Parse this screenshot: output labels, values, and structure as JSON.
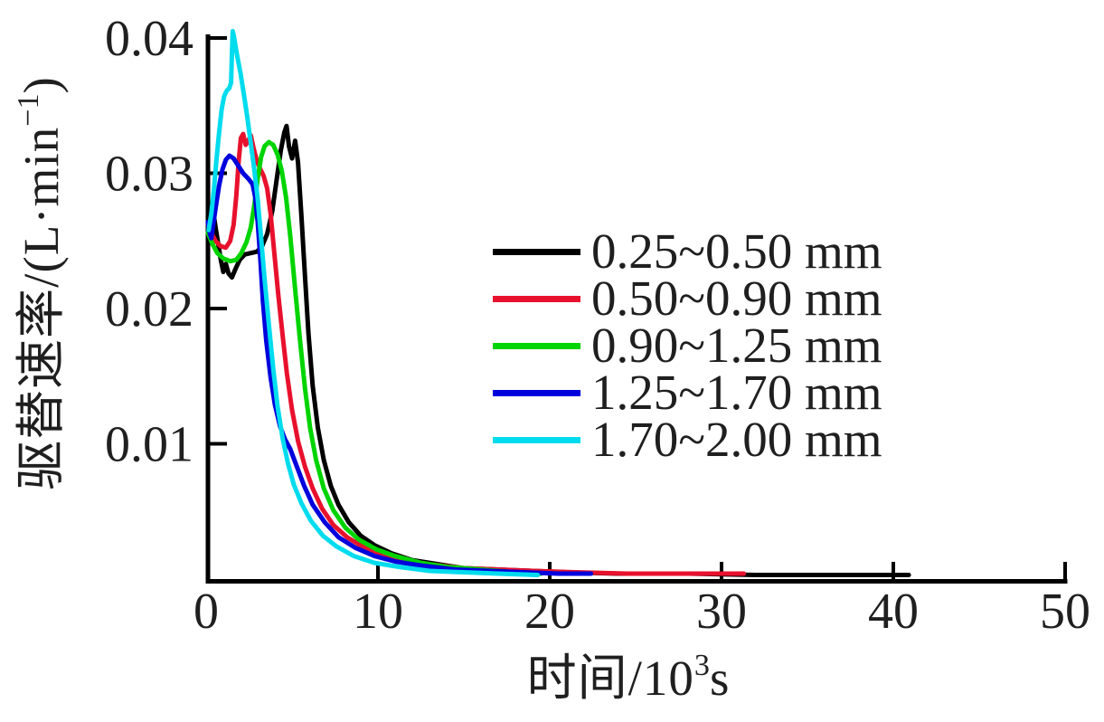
{
  "figure": {
    "background": "#ffffff",
    "text_color": "#1f1f1f",
    "axis_color": "#000000",
    "x_axis": {
      "label_prefix": "时间/10",
      "label_sup": "3",
      "label_suffix": "s",
      "range": [
        0,
        50
      ],
      "ticks": [
        0,
        10,
        20,
        30,
        40,
        50
      ],
      "tick_labels": [
        "0",
        "10",
        "20",
        "30",
        "40",
        "50"
      ]
    },
    "y_axis": {
      "label_prefix": "驱替速率/(L·min",
      "label_sup": "−1",
      "label_suffix": ")",
      "range": [
        0,
        0.04
      ],
      "ticks": [
        0.01,
        0.02,
        0.03,
        0.04
      ],
      "tick_labels": [
        "0.01",
        "0.02",
        "0.03",
        "0.04"
      ]
    },
    "legend": {
      "position": "center-right"
    }
  },
  "chart_data": {
    "type": "line",
    "title": "",
    "xlabel": "时间/10³s",
    "ylabel": "驱替速率/(L·min⁻¹)",
    "xlim": [
      0,
      50
    ],
    "ylim": [
      0,
      0.04
    ],
    "grid": false,
    "legend_position": "center-right",
    "series": [
      {
        "name": "0.25~0.50 mm",
        "color": "#000000",
        "points": [
          [
            0.1,
            0.0268
          ],
          [
            0.2,
            0.0275
          ],
          [
            0.3,
            0.0266
          ],
          [
            0.42,
            0.0271
          ],
          [
            0.55,
            0.026
          ],
          [
            0.7,
            0.0248
          ],
          [
            0.85,
            0.0236
          ],
          [
            1.0,
            0.0227
          ],
          [
            1.15,
            0.0233
          ],
          [
            1.3,
            0.0226
          ],
          [
            1.5,
            0.0223
          ],
          [
            1.7,
            0.0229
          ],
          [
            1.95,
            0.0236
          ],
          [
            2.25,
            0.024
          ],
          [
            2.6,
            0.0241
          ],
          [
            2.95,
            0.0242
          ],
          [
            3.25,
            0.0246
          ],
          [
            3.55,
            0.0255
          ],
          [
            3.85,
            0.0272
          ],
          [
            4.1,
            0.0295
          ],
          [
            4.35,
            0.0317
          ],
          [
            4.55,
            0.033
          ],
          [
            4.68,
            0.0335
          ],
          [
            4.82,
            0.032
          ],
          [
            5.0,
            0.0311
          ],
          [
            5.18,
            0.0324
          ],
          [
            5.35,
            0.0308
          ],
          [
            5.55,
            0.0268
          ],
          [
            5.75,
            0.0224
          ],
          [
            5.95,
            0.0182
          ],
          [
            6.2,
            0.0143
          ],
          [
            6.5,
            0.0112
          ],
          [
            6.85,
            0.0088
          ],
          [
            7.25,
            0.0069
          ],
          [
            7.7,
            0.0055
          ],
          [
            8.3,
            0.0042
          ],
          [
            9.0,
            0.0032
          ],
          [
            9.8,
            0.0025
          ],
          [
            10.8,
            0.0019
          ],
          [
            12,
            0.0014
          ],
          [
            13.5,
            0.0011
          ],
          [
            15,
            0.0008
          ],
          [
            17,
            0.0007
          ],
          [
            19,
            0.0006
          ],
          [
            21,
            0.0005
          ],
          [
            24,
            0.0004
          ],
          [
            28,
            0.0004
          ],
          [
            32,
            0.0003
          ],
          [
            36,
            0.0003
          ],
          [
            40.9,
            0.0003
          ]
        ]
      },
      {
        "name": "0.50~0.90 mm",
        "color": "#e8112d",
        "points": [
          [
            0.1,
            0.0263
          ],
          [
            0.3,
            0.0256
          ],
          [
            0.55,
            0.025
          ],
          [
            0.85,
            0.0246
          ],
          [
            1.15,
            0.0245
          ],
          [
            1.4,
            0.025
          ],
          [
            1.6,
            0.0262
          ],
          [
            1.75,
            0.0283
          ],
          [
            1.9,
            0.031
          ],
          [
            2.02,
            0.0326
          ],
          [
            2.15,
            0.0329
          ],
          [
            2.3,
            0.0321
          ],
          [
            2.45,
            0.0324
          ],
          [
            2.6,
            0.0328
          ],
          [
            2.75,
            0.0319
          ],
          [
            2.95,
            0.0309
          ],
          [
            3.15,
            0.0303
          ],
          [
            3.35,
            0.0298
          ],
          [
            3.55,
            0.0289
          ],
          [
            3.75,
            0.027
          ],
          [
            3.95,
            0.0243
          ],
          [
            4.2,
            0.021
          ],
          [
            4.45,
            0.018
          ],
          [
            4.7,
            0.0152
          ],
          [
            5.0,
            0.0125
          ],
          [
            5.35,
            0.0102
          ],
          [
            5.75,
            0.0083
          ],
          [
            6.2,
            0.0067
          ],
          [
            6.75,
            0.0052
          ],
          [
            7.4,
            0.004
          ],
          [
            8.2,
            0.0031
          ],
          [
            9.1,
            0.0024
          ],
          [
            10.2,
            0.0018
          ],
          [
            11.5,
            0.0014
          ],
          [
            13,
            0.0011
          ],
          [
            15,
            0.0008
          ],
          [
            17,
            0.0007
          ],
          [
            19,
            0.0006
          ],
          [
            21.5,
            0.0005
          ],
          [
            24.5,
            0.0004
          ],
          [
            28,
            0.0004
          ],
          [
            31.3,
            0.0004
          ]
        ]
      },
      {
        "name": "0.90~1.25 mm",
        "color": "#00d400",
        "points": [
          [
            0.1,
            0.0256
          ],
          [
            0.35,
            0.0248
          ],
          [
            0.65,
            0.0241
          ],
          [
            1.0,
            0.0237
          ],
          [
            1.4,
            0.0235
          ],
          [
            1.75,
            0.0236
          ],
          [
            2.05,
            0.0241
          ],
          [
            2.35,
            0.0249
          ],
          [
            2.6,
            0.026
          ],
          [
            2.8,
            0.0276
          ],
          [
            3.0,
            0.0296
          ],
          [
            3.2,
            0.0312
          ],
          [
            3.4,
            0.032
          ],
          [
            3.65,
            0.0323
          ],
          [
            3.9,
            0.0321
          ],
          [
            4.15,
            0.0314
          ],
          [
            4.4,
            0.0302
          ],
          [
            4.65,
            0.0282
          ],
          [
            4.9,
            0.0253
          ],
          [
            5.15,
            0.0218
          ],
          [
            5.45,
            0.0178
          ],
          [
            5.75,
            0.0141
          ],
          [
            6.05,
            0.0112
          ],
          [
            6.4,
            0.0088
          ],
          [
            6.85,
            0.0067
          ],
          [
            7.4,
            0.0051
          ],
          [
            8.1,
            0.0038
          ],
          [
            8.9,
            0.0029
          ],
          [
            9.9,
            0.0022
          ],
          [
            11,
            0.0017
          ],
          [
            12.5,
            0.0012
          ],
          [
            14,
            0.0009
          ],
          [
            16,
            0.0007
          ],
          [
            18,
            0.0005
          ],
          [
            19.5,
            0.0004
          ]
        ]
      },
      {
        "name": "1.25~1.70 mm",
        "color": "#0000dd",
        "points": [
          [
            0.1,
            0.0264
          ],
          [
            0.2,
            0.0256
          ],
          [
            0.3,
            0.0252
          ],
          [
            0.4,
            0.0261
          ],
          [
            0.55,
            0.0274
          ],
          [
            0.75,
            0.0291
          ],
          [
            0.95,
            0.0303
          ],
          [
            1.15,
            0.031
          ],
          [
            1.35,
            0.0313
          ],
          [
            1.6,
            0.0311
          ],
          [
            1.85,
            0.0306
          ],
          [
            2.15,
            0.03
          ],
          [
            2.45,
            0.0296
          ],
          [
            2.7,
            0.0292
          ],
          [
            2.85,
            0.0283
          ],
          [
            3.0,
            0.0264
          ],
          [
            3.15,
            0.0237
          ],
          [
            3.3,
            0.0206
          ],
          [
            3.5,
            0.0176
          ],
          [
            3.75,
            0.0149
          ],
          [
            4.0,
            0.0129
          ],
          [
            4.3,
            0.0113
          ],
          [
            4.6,
            0.0103
          ],
          [
            4.9,
            0.0096
          ],
          [
            5.25,
            0.0084
          ],
          [
            5.7,
            0.0069
          ],
          [
            6.2,
            0.0055
          ],
          [
            6.9,
            0.0042
          ],
          [
            7.7,
            0.0031
          ],
          [
            8.7,
            0.0023
          ],
          [
            9.8,
            0.0017
          ],
          [
            11,
            0.0013
          ],
          [
            12.5,
            0.001
          ],
          [
            14.5,
            0.0007
          ],
          [
            16.5,
            0.0006
          ],
          [
            18.5,
            0.0005
          ],
          [
            20.5,
            0.0004
          ],
          [
            22.4,
            0.0004
          ]
        ]
      },
      {
        "name": "1.70~2.00 mm",
        "color": "#00dcee",
        "points": [
          [
            0.15,
            0.0258
          ],
          [
            0.3,
            0.027
          ],
          [
            0.45,
            0.0288
          ],
          [
            0.6,
            0.031
          ],
          [
            0.75,
            0.033
          ],
          [
            0.9,
            0.0347
          ],
          [
            1.05,
            0.0357
          ],
          [
            1.2,
            0.0361
          ],
          [
            1.35,
            0.0363
          ],
          [
            1.45,
            0.0367
          ],
          [
            1.5,
            0.0388
          ],
          [
            1.55,
            0.0405
          ],
          [
            1.62,
            0.0401
          ],
          [
            1.72,
            0.0393
          ],
          [
            1.85,
            0.0384
          ],
          [
            2.0,
            0.0374
          ],
          [
            2.2,
            0.0358
          ],
          [
            2.4,
            0.0341
          ],
          [
            2.6,
            0.0322
          ],
          [
            2.8,
            0.0303
          ],
          [
            3.0,
            0.0281
          ],
          [
            3.2,
            0.0252
          ],
          [
            3.4,
            0.0222
          ],
          [
            3.65,
            0.0188
          ],
          [
            3.9,
            0.0156
          ],
          [
            4.15,
            0.0128
          ],
          [
            4.45,
            0.0104
          ],
          [
            4.75,
            0.0086
          ],
          [
            5.1,
            0.007
          ],
          [
            5.55,
            0.0056
          ],
          [
            6.1,
            0.0043
          ],
          [
            6.8,
            0.0032
          ],
          [
            7.6,
            0.0024
          ],
          [
            8.6,
            0.0017
          ],
          [
            9.8,
            0.0012
          ],
          [
            11.2,
            0.0009
          ],
          [
            13,
            0.0006
          ],
          [
            15,
            0.0005
          ],
          [
            17,
            0.0004
          ],
          [
            19.3,
            0.0003
          ]
        ]
      }
    ]
  }
}
